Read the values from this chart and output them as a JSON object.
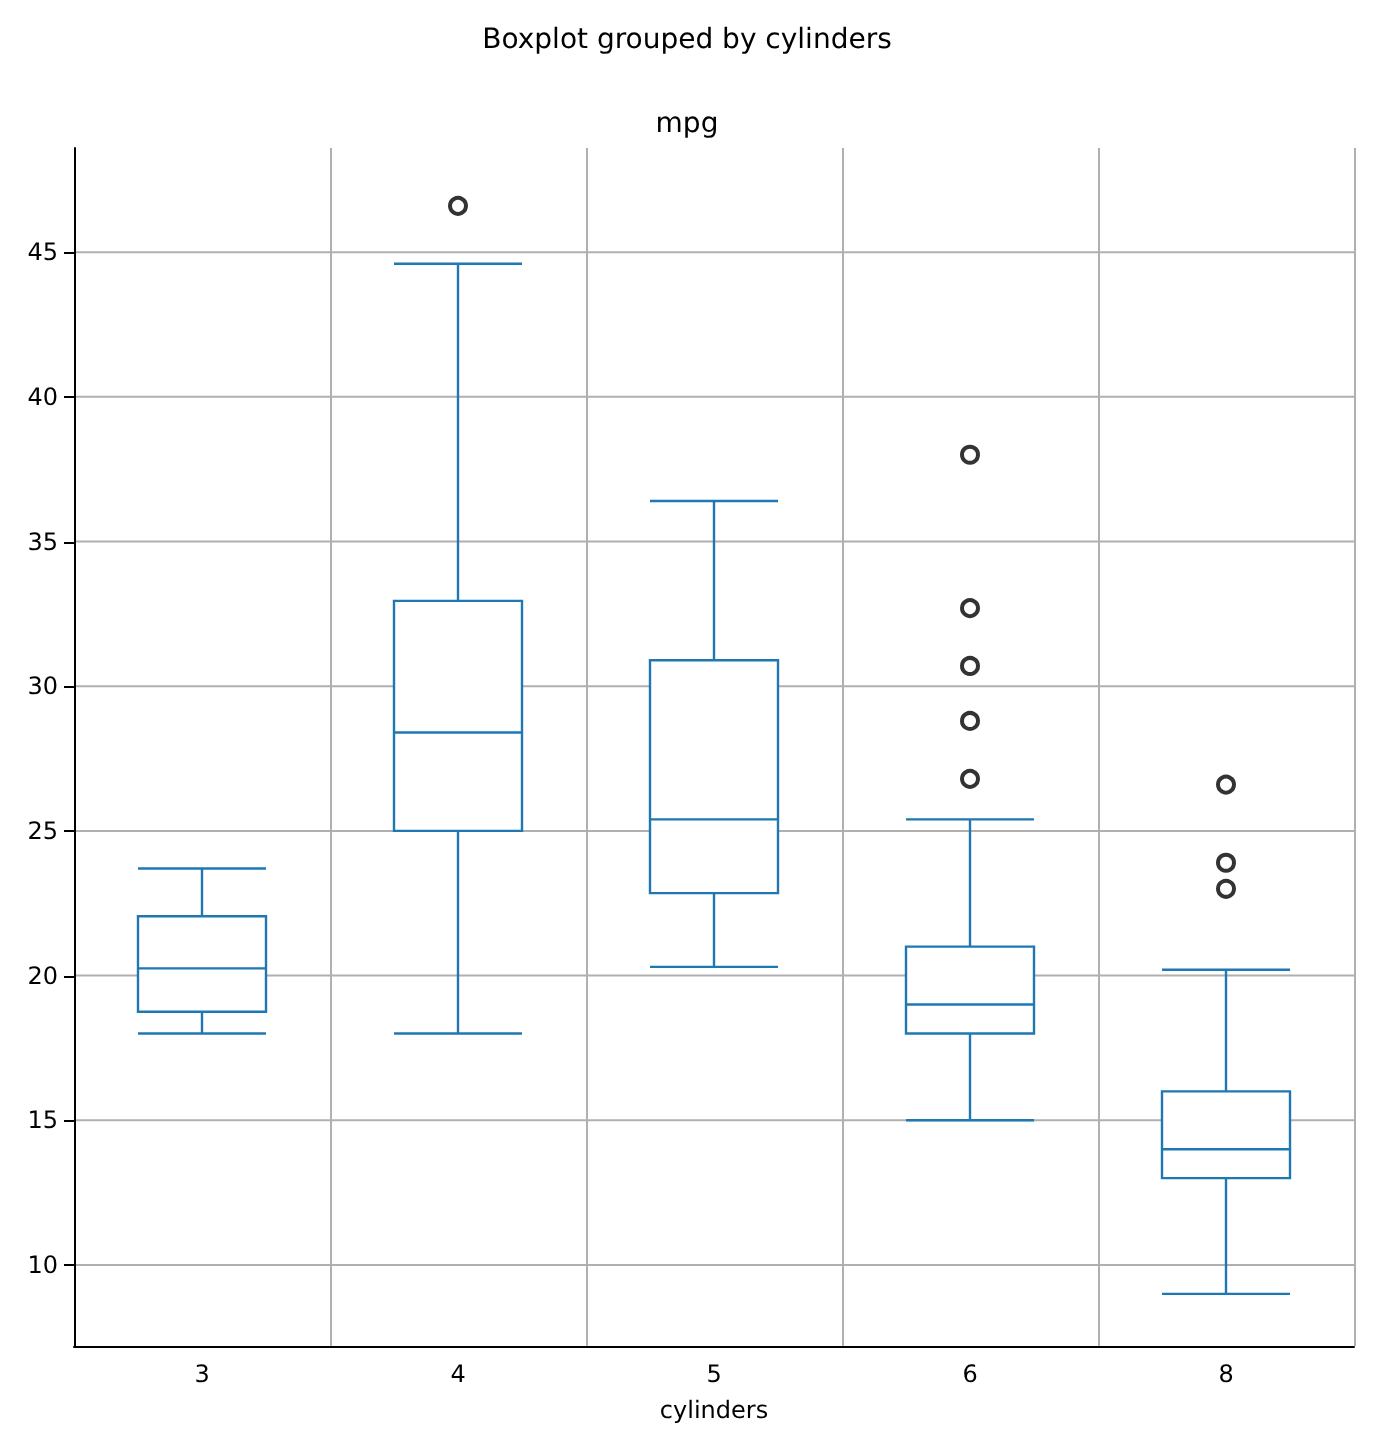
{
  "chart_data": {
    "type": "box",
    "title": "Boxplot grouped by cylinders",
    "subtitle": "mpg",
    "xlabel": "cylinders",
    "categories": [
      "3",
      "4",
      "5",
      "6",
      "8"
    ],
    "series": [
      {
        "color": "#1f77b4",
        "boxes": [
          {
            "low": 18,
            "q1": 18.75,
            "median": 20.25,
            "q3": 22.05,
            "high": 23.7
          },
          {
            "low": 18,
            "q1": 25,
            "median": 28.4,
            "q3": 32.95,
            "high": 44.6,
            "outliers": [
              46.6
            ]
          },
          {
            "low": 20.3,
            "q1": 22.85,
            "median": 25.4,
            "q3": 30.9,
            "high": 36.4
          },
          {
            "low": 15,
            "q1": 18,
            "median": 19,
            "q3": 21,
            "high": 25.4,
            "outliers": [
              26.8,
              28.8,
              30.7,
              32.7,
              38
            ]
          },
          {
            "low": 9,
            "q1": 13,
            "median": 14,
            "q3": 16,
            "high": 20.2,
            "outliers": [
              23,
              23.9,
              26.6
            ]
          }
        ]
      }
    ],
    "ylim": [
      7.2,
      48.6
    ],
    "yticks": [
      10,
      15,
      20,
      25,
      30,
      35,
      40,
      45
    ],
    "grid": true
  }
}
